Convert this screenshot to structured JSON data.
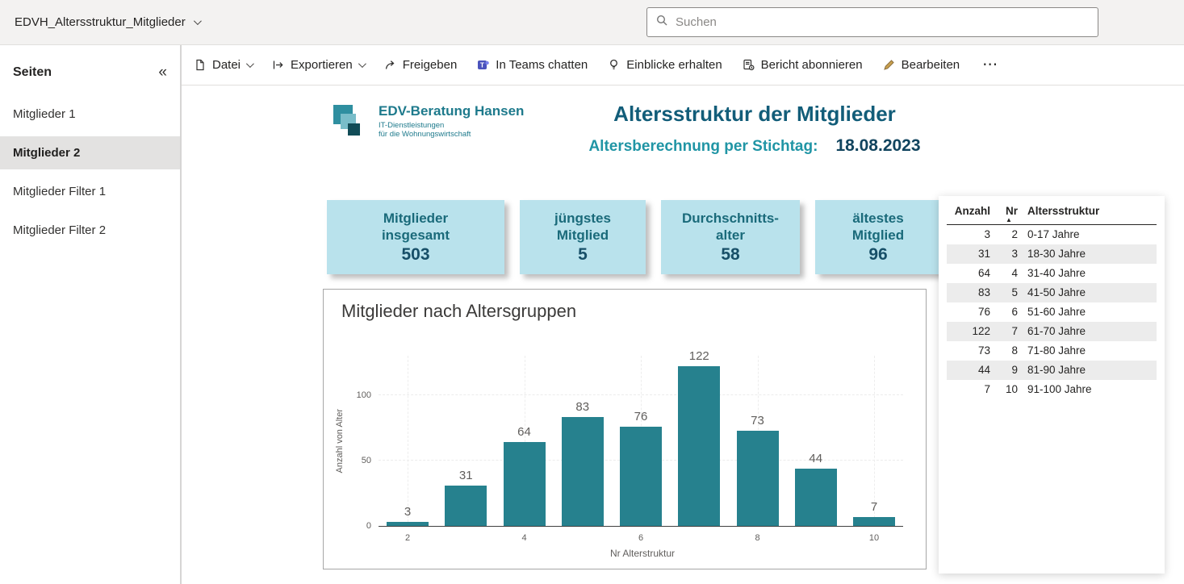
{
  "topbar": {
    "report_name": "EDVH_Altersstruktur_Mitglieder",
    "search_placeholder": "Suchen"
  },
  "sidebar": {
    "header": "Seiten",
    "collapse_icon": "«",
    "items": [
      {
        "label": "Mitglieder 1",
        "active": false
      },
      {
        "label": "Mitglieder 2",
        "active": true
      },
      {
        "label": "Mitglieder Filter 1",
        "active": false
      },
      {
        "label": "Mitglieder Filter 2",
        "active": false
      }
    ]
  },
  "toolbar": {
    "items": [
      {
        "label": "Datei",
        "icon": "file-icon",
        "has_chevron": true
      },
      {
        "label": "Exportieren",
        "icon": "export-icon",
        "has_chevron": true
      },
      {
        "label": "Freigeben",
        "icon": "share-icon",
        "has_chevron": false
      },
      {
        "label": "In Teams chatten",
        "icon": "teams-icon",
        "has_chevron": false
      },
      {
        "label": "Einblicke erhalten",
        "icon": "lightbulb-icon",
        "has_chevron": false
      },
      {
        "label": "Bericht abonnieren",
        "icon": "subscribe-icon",
        "has_chevron": false
      },
      {
        "label": "Bearbeiten",
        "icon": "edit-icon",
        "has_chevron": false
      }
    ],
    "more_label": "⋯"
  },
  "report": {
    "logo": {
      "company": "EDV-Beratung Hansen",
      "tagline1": "IT-Dienstleistungen",
      "tagline2": "für die Wohnungswirtschaft"
    },
    "title": "Altersstruktur der Mitglieder",
    "date_label": "Altersberechnung per Stichtag:",
    "date_value": "18.08.2023",
    "kpis": [
      {
        "label": "Mitglieder insgesamt",
        "value": "503"
      },
      {
        "label": "jüngstes Mitglied",
        "value": "5"
      },
      {
        "label": "Durchschnitts-alter",
        "value": "58"
      },
      {
        "label": "ältestes Mitglied",
        "value": "96"
      }
    ]
  },
  "chart_data": {
    "type": "bar",
    "title": "Mitglieder nach Altersgruppen",
    "xlabel": "Nr Alterstruktur",
    "ylabel": "Anzahl von Alter",
    "x": [
      2,
      3,
      4,
      5,
      6,
      7,
      8,
      9,
      10
    ],
    "values": [
      3,
      31,
      64,
      83,
      76,
      122,
      73,
      44,
      7
    ],
    "x_ticks": [
      2,
      4,
      6,
      8,
      10
    ],
    "y_ticks": [
      0,
      50,
      100
    ],
    "ylim": [
      0,
      130
    ],
    "bar_color": "#26818e",
    "grid": true,
    "legend": false
  },
  "table": {
    "columns": [
      {
        "label": "Anzahl",
        "sorted": false
      },
      {
        "label": "Nr",
        "sorted": true,
        "sort_direction": "asc",
        "sort_icon": "▲"
      },
      {
        "label": "Altersstruktur",
        "sorted": false
      }
    ],
    "rows": [
      {
        "anzahl": "3",
        "nr": "2",
        "altersstruktur": "0-17 Jahre"
      },
      {
        "anzahl": "31",
        "nr": "3",
        "altersstruktur": "18-30 Jahre"
      },
      {
        "anzahl": "64",
        "nr": "4",
        "altersstruktur": "31-40 Jahre"
      },
      {
        "anzahl": "83",
        "nr": "5",
        "altersstruktur": "41-50 Jahre"
      },
      {
        "anzahl": "76",
        "nr": "6",
        "altersstruktur": "51-60 Jahre"
      },
      {
        "anzahl": "122",
        "nr": "7",
        "altersstruktur": "61-70 Jahre"
      },
      {
        "anzahl": "73",
        "nr": "8",
        "altersstruktur": "71-80 Jahre"
      },
      {
        "anzahl": "44",
        "nr": "9",
        "altersstruktur": "81-90 Jahre"
      },
      {
        "anzahl": "7",
        "nr": "10",
        "altersstruktur": "91-100 Jahre"
      }
    ]
  },
  "colors": {
    "accent_teal": "#26818e",
    "title_teal": "#125d79",
    "subtitle_teal": "#2095a5",
    "kpi_bg": "#b9e2ec",
    "kpi_text": "#1a6a7a",
    "topbar_bg": "#f3f2f1"
  }
}
